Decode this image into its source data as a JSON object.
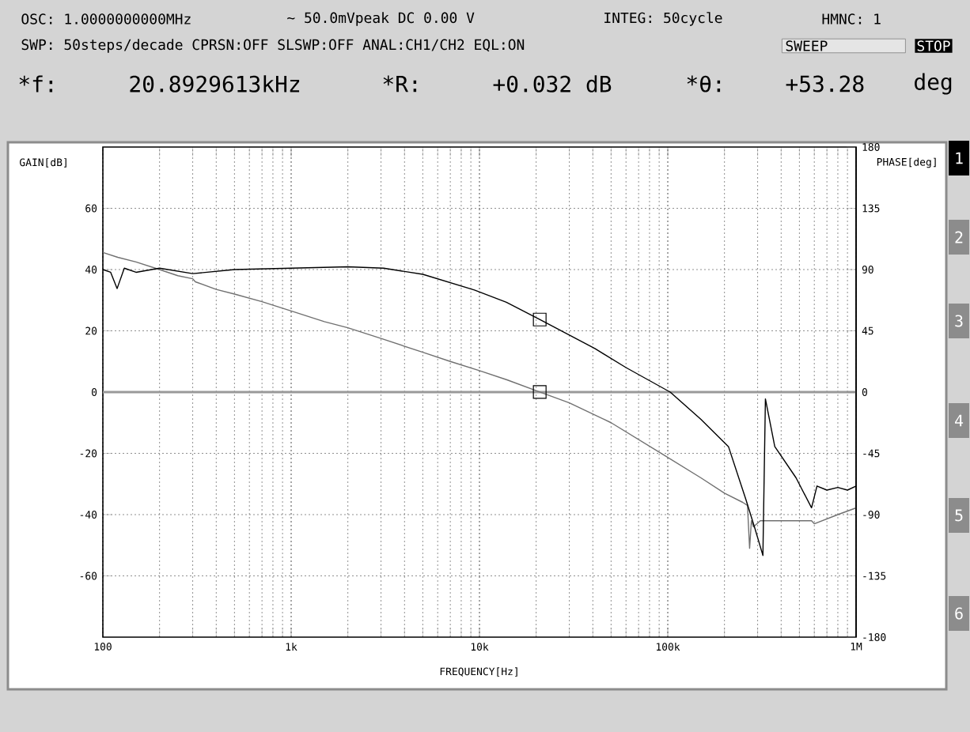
{
  "chart_data": {
    "type": "line",
    "xlabel": "FREQUENCY[Hz]",
    "ylabel": "GAIN[dB]",
    "y2label": "PHASE[deg]",
    "log": "x",
    "grid": true,
    "xlim": [
      100,
      1000000
    ],
    "xticks": [
      {
        "value": 100,
        "label": "100"
      },
      {
        "value": 1000,
        "label": "1k"
      },
      {
        "value": 10000,
        "label": "10k"
      },
      {
        "value": 100000,
        "label": "100k"
      },
      {
        "value": 1000000,
        "label": "1M"
      }
    ],
    "ylim": [
      -80,
      80
    ],
    "yticks": [
      -60,
      -40,
      -20,
      0,
      20,
      40,
      60
    ],
    "y2lim": [
      -180,
      180
    ],
    "y2ticks": [
      -180,
      -135,
      -90,
      -45,
      0,
      45,
      90,
      135,
      180
    ],
    "ref_lines": [
      {
        "axis": "y",
        "value": 0,
        "color": "#999999"
      }
    ],
    "series": [
      {
        "color": "#707070",
        "x": [
          100,
          120,
          150,
          200,
          250,
          300,
          310,
          400,
          500,
          700,
          1000,
          1500,
          2000,
          3000,
          5000,
          7000,
          10000,
          14000,
          20892.9613,
          30000,
          50000,
          95000,
          150000,
          200000,
          250000,
          265000,
          272000,
          278000,
          285000,
          310000,
          340000,
          450000,
          580000,
          600000,
          800000,
          1000000
        ],
        "values": [
          45.6,
          44,
          42.5,
          40,
          38,
          37,
          36,
          33.5,
          32,
          29.5,
          26.5,
          23,
          21,
          17.5,
          13,
          10,
          7,
          4,
          0.032,
          -3.5,
          -10,
          -20.5,
          -28,
          -33,
          -36,
          -37,
          -51,
          -42,
          -44,
          -42,
          -42,
          -42,
          -42,
          -43,
          -40,
          -37.8
        ]
      },
      {
        "color": "#000000",
        "axis": "y2",
        "x": [
          100,
          110,
          119,
          130,
          150,
          200,
          300,
          500,
          1000,
          2000,
          3100,
          5000,
          9400,
          13900,
          20892.9613,
          41000,
          60000,
          103000,
          150000,
          210000,
          260000,
          290000,
          320000,
          330000,
          370000,
          480000,
          580000,
          620000,
          700000,
          800000,
          900000,
          1000000
        ],
        "values": [
          90,
          88,
          76,
          91,
          88,
          91,
          87,
          90,
          91,
          92,
          91,
          86.5,
          75,
          66,
          53.28,
          32,
          18,
          0,
          -20,
          -40,
          -79,
          -100,
          -120,
          -5,
          -40,
          -63,
          -85,
          -69,
          -72,
          -70,
          -72,
          -69
        ]
      },
      {
        "type": "scatter",
        "marker": "square",
        "color": "#000000",
        "x": [
          20892.9613
        ],
        "values": [
          0.032
        ]
      },
      {
        "type": "scatter",
        "marker": "square",
        "color": "#000000",
        "axis": "y2",
        "x": [
          20892.9613
        ],
        "values": [
          53.28
        ]
      }
    ],
    "annotations": [
      "OSC: 1.0000000000MHz",
      "∼ 50.0mVpeak DC  0.00 V",
      "INTEG: 50cycle",
      "HMNC: 1",
      "SWP: 50steps/decade CPRSN:OFF SLSWP:OFF ANAL:CH1/CH2 EQL:ON",
      "SWEEP",
      "STOP",
      "*f:",
      "20.8929613kHz",
      "*R:",
      "+0.032 dB",
      "*θ:",
      "+53.28",
      "deg",
      "1",
      "2",
      "3",
      "4",
      "5",
      "6"
    ]
  }
}
